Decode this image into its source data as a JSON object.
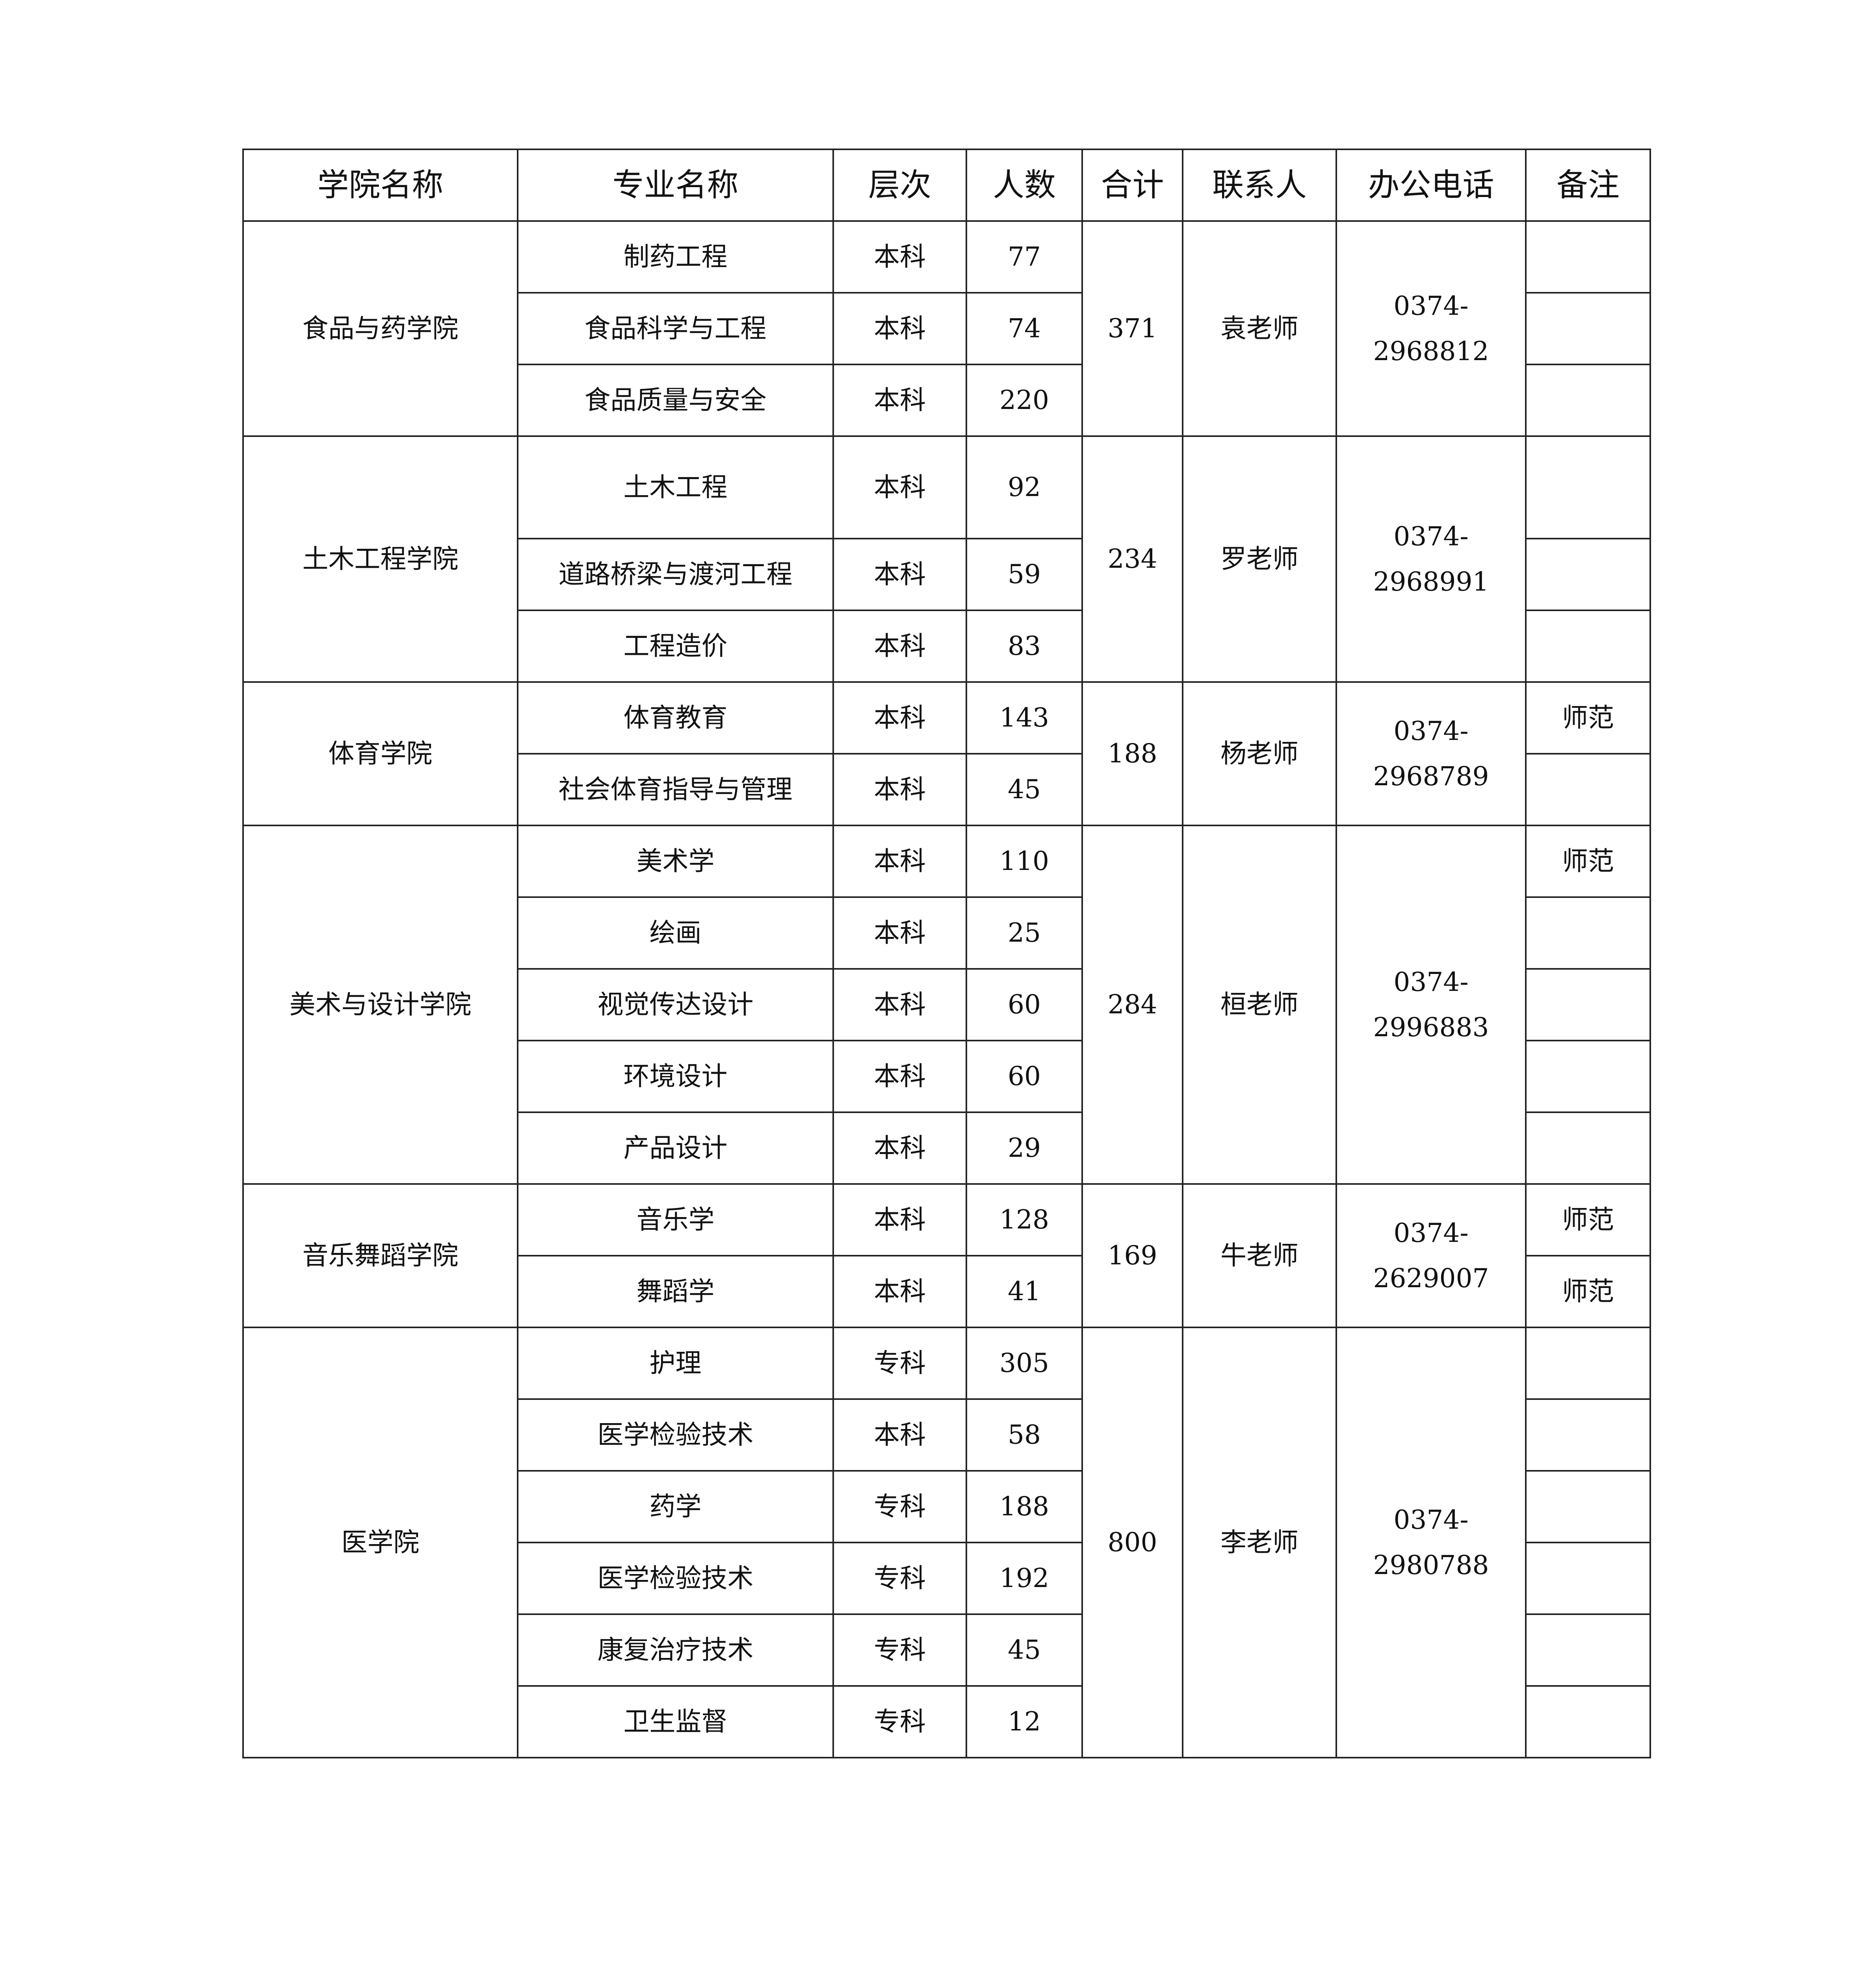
{
  "headers": [
    "学院名称",
    "专业名称",
    "层次",
    "人数",
    "合计",
    "联系人",
    "办公电话",
    "备注"
  ],
  "groups": [
    {
      "college": "食品与药学院",
      "total": "371",
      "contact": "袁老师",
      "phone": [
        "0374-",
        "2968812"
      ],
      "rows": [
        [
          "制药工程",
          "本科",
          "77",
          ""
        ],
        [
          "食品科学与工程",
          "本科",
          "74",
          ""
        ],
        [
          "食品质量与安全",
          "本科",
          "220",
          ""
        ]
      ]
    },
    {
      "college": "土木工程学院",
      "total": "234",
      "contact": "罗老师",
      "phone": [
        "0374-",
        "2968991"
      ],
      "rows": [
        [
          "土木工程",
          "本科",
          "92",
          ""
        ],
        [
          "道路桥梁与渡河工程",
          "本科",
          "59",
          ""
        ],
        [
          "工程造价",
          "本科",
          "83",
          ""
        ]
      ]
    },
    {
      "college": "体育学院",
      "total": "188",
      "contact": "杨老师",
      "phone": [
        "0374-",
        "2968789"
      ],
      "rows": [
        [
          "体育教育",
          "本科",
          "143",
          "师范"
        ],
        [
          "社会体育指导与管理",
          "本科",
          "45",
          ""
        ]
      ]
    },
    {
      "college": "美术与设计学院",
      "total": "284",
      "contact": "桓老师",
      "phone": [
        "0374-",
        "2996883"
      ],
      "rows": [
        [
          "美术学",
          "本科",
          "110",
          "师范"
        ],
        [
          "绘画",
          "本科",
          "25",
          ""
        ],
        [
          "视觉传达设计",
          "本科",
          "60",
          ""
        ],
        [
          "环境设计",
          "本科",
          "60",
          ""
        ],
        [
          "产品设计",
          "本科",
          "29",
          ""
        ]
      ]
    },
    {
      "college": "音乐舞蹈学院",
      "total": "169",
      "contact": "牛老师",
      "phone": [
        "0374-",
        "2629007"
      ],
      "rows": [
        [
          "音乐学",
          "本科",
          "128",
          "师范"
        ],
        [
          "舞蹈学",
          "本科",
          "41",
          "师范"
        ]
      ]
    },
    {
      "college": "医学院",
      "total": "800",
      "contact": "李老师",
      "phone": [
        "0374-",
        "2980788"
      ],
      "rows": [
        [
          "护理",
          "专科",
          "305",
          ""
        ],
        [
          "医学检验技术",
          "本科",
          "58",
          ""
        ],
        [
          "药学",
          "专科",
          "188",
          ""
        ],
        [
          "医学检验技术",
          "专科",
          "192",
          ""
        ],
        [
          "康复治疗技术",
          "专科",
          "45",
          ""
        ],
        [
          "卫生监督",
          "专科",
          "12",
          ""
        ]
      ]
    }
  ]
}
